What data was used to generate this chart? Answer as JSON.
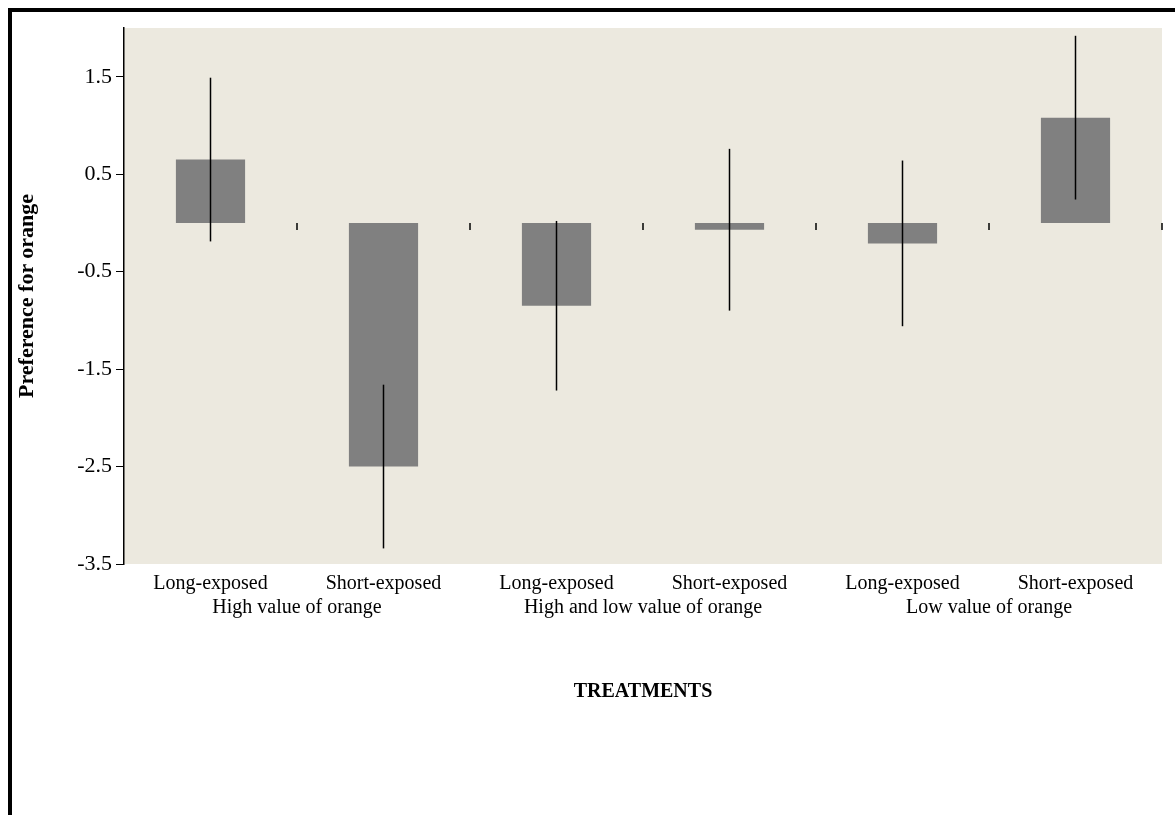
{
  "chart_data": {
    "type": "bar",
    "ylabel": "Preference for orange",
    "xlabel": "TREATMENTS",
    "categories": [
      "Long-exposed",
      "Short-exposed",
      "Long-exposed",
      "Short-exposed",
      "Long-exposed",
      "Short-exposed"
    ],
    "values": [
      0.65,
      -2.5,
      -0.85,
      -0.07,
      -0.21,
      1.08
    ],
    "errors": [
      0.84,
      0.84,
      0.87,
      0.83,
      0.85,
      0.84
    ],
    "color": "#808080",
    "annotations": [
      "High value of orange",
      "High and low value of orange",
      "Low value of orange"
    ],
    "ylim": [
      -3.5,
      2
    ],
    "yticks": [
      -3.5,
      -2.5,
      -1.5,
      -0.5,
      0.5,
      1.5
    ],
    "grid": false,
    "legend": false
  }
}
